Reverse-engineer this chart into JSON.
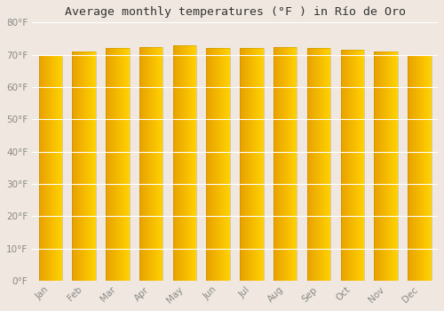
{
  "title": "Average monthly temperatures (°F ) in Río de Oro",
  "months": [
    "Jan",
    "Feb",
    "Mar",
    "Apr",
    "May",
    "Jun",
    "Jul",
    "Aug",
    "Sep",
    "Oct",
    "Nov",
    "Dec"
  ],
  "values": [
    70,
    71,
    72,
    72.5,
    73,
    72,
    72,
    72.5,
    72,
    71.5,
    71,
    70
  ],
  "ylim": [
    0,
    80
  ],
  "yticks": [
    0,
    10,
    20,
    30,
    40,
    50,
    60,
    70,
    80
  ],
  "bar_color_left": "#E8A000",
  "bar_color_right": "#FFD050",
  "bar_edge_color": "#B8900080",
  "background_color": "#f0e8e0",
  "grid_color": "#ffffff",
  "tick_color": "#888888",
  "title_fontsize": 9.5,
  "tick_fontsize": 7.5,
  "bar_width": 0.7
}
